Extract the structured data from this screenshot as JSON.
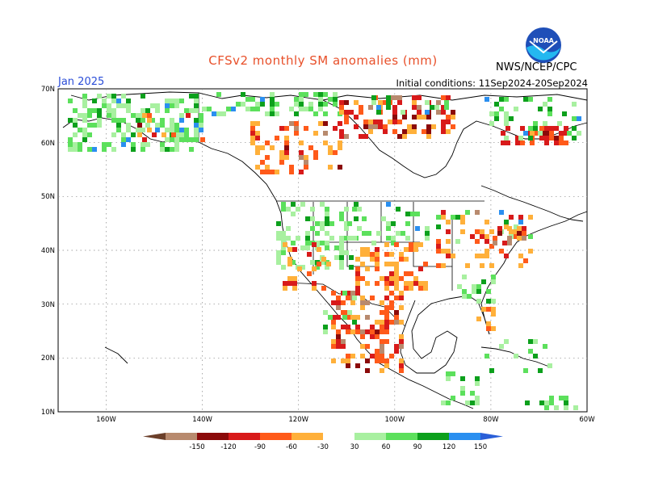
{
  "title": "CFSv2 monthly SM anomalies (mm)",
  "month": "Jan 2025",
  "initial_conditions": "Initial conditions: 11Sep2024-20Sep2024",
  "agency": "NWS/NCEP/CPC",
  "logo_text": "NOAA",
  "map": {
    "region": "North America",
    "lon_range": [
      -170,
      -60
    ],
    "lat_range": [
      10,
      70
    ],
    "lat_labels": [
      "70N",
      "60N",
      "50N",
      "40N",
      "30N",
      "20N",
      "10N"
    ],
    "lon_labels": [
      "160W",
      "140W",
      "120W",
      "100W",
      "80W",
      "60W"
    ],
    "grid": "dotted"
  },
  "colorbar": {
    "labels": [
      "-150",
      "-120",
      "-90",
      "-60",
      "-30",
      "30",
      "60",
      "90",
      "120",
      "150"
    ],
    "colors": [
      "#6b3f2a",
      "#b88a6e",
      "#8b0a0a",
      "#d81a1a",
      "#ff5a1a",
      "#ffb03a",
      "#ffffff",
      "#a8f0a0",
      "#5ce05c",
      "#0ca01c",
      "#2a8ff0",
      "#2a5fd8"
    ]
  },
  "features": {
    "drying_colors": [
      "#ffb03a",
      "#ff5a1a",
      "#d81a1a",
      "#8b0a0a",
      "#b88a6e",
      "#6b3f2a"
    ],
    "wetting_colors": [
      "#a8f0a0",
      "#5ce05c",
      "#0ca01c",
      "#2a8ff0"
    ]
  }
}
